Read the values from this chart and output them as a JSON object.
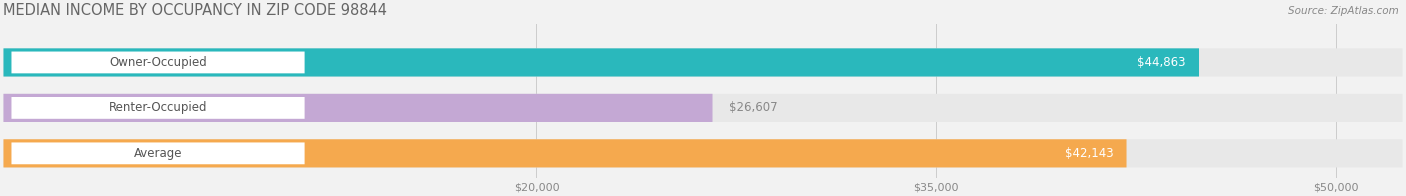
{
  "title": "MEDIAN INCOME BY OCCUPANCY IN ZIP CODE 98844",
  "source": "Source: ZipAtlas.com",
  "categories": [
    "Owner-Occupied",
    "Renter-Occupied",
    "Average"
  ],
  "values": [
    44863,
    26607,
    42143
  ],
  "bar_colors": [
    "#2ab8bc",
    "#c4a8d4",
    "#f5a94e"
  ],
  "value_labels": [
    "$44,863",
    "$26,607",
    "$42,143"
  ],
  "xmin": 0,
  "xmax": 52500,
  "xticks": [
    20000,
    35000,
    50000
  ],
  "xtick_labels": [
    "$20,000",
    "$35,000",
    "$50,000"
  ],
  "background_color": "#f2f2f2",
  "bar_bg_color": "#e4e4e4",
  "title_fontsize": 10.5,
  "label_fontsize": 8.5,
  "value_fontsize": 8.5,
  "tick_fontsize": 8
}
